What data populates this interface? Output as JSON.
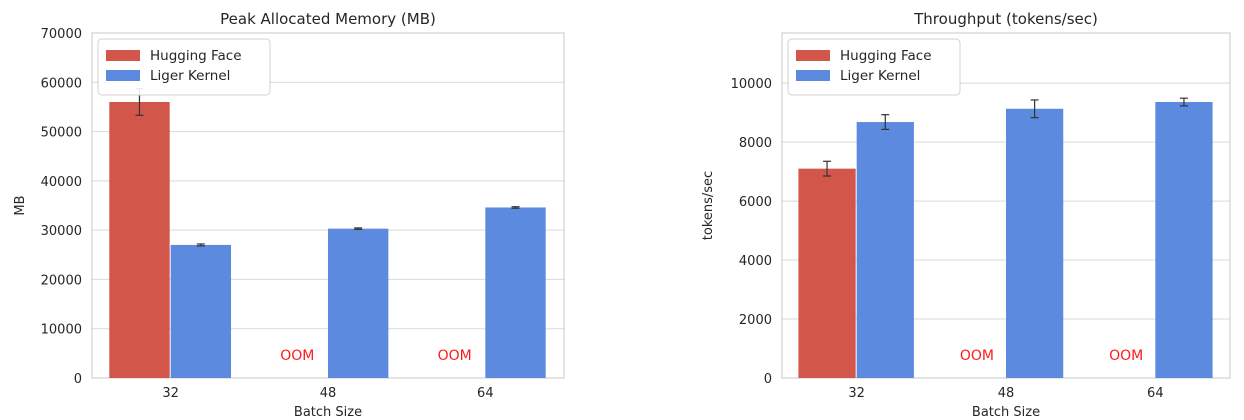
{
  "colors": {
    "hugging_face": "#d2564a",
    "liger_kernel": "#5b8ade",
    "oom_text": "#ff1a1a",
    "grid": "#d9d9d9",
    "frame": "#c8c8c8"
  },
  "chart_data": [
    {
      "type": "bar",
      "title": "Peak Allocated Memory (MB)",
      "xlabel": "Batch Size",
      "ylabel": "MB",
      "categories": [
        "32",
        "48",
        "64"
      ],
      "ylim": [
        0,
        70000
      ],
      "yticks": [
        0,
        10000,
        20000,
        30000,
        40000,
        50000,
        60000,
        70000
      ],
      "grid": true,
      "legend_position": "top-left",
      "series": [
        {
          "name": "Hugging Face",
          "color_key": "hugging_face",
          "values": [
            56000,
            null,
            null
          ],
          "errors": [
            2700,
            null,
            null
          ]
        },
        {
          "name": "Liger Kernel",
          "color_key": "liger_kernel",
          "values": [
            27000,
            30300,
            34600
          ],
          "errors": [
            200,
            150,
            150
          ]
        }
      ],
      "annotations": [
        {
          "text": "OOM",
          "category": "48"
        },
        {
          "text": "OOM",
          "category": "64"
        }
      ]
    },
    {
      "type": "bar",
      "title": "Throughput (tokens/sec)",
      "xlabel": "Batch Size",
      "ylabel": "tokens/sec",
      "categories": [
        "32",
        "48",
        "64"
      ],
      "ylim": [
        0,
        11700
      ],
      "yticks": [
        0,
        2000,
        4000,
        6000,
        8000,
        10000
      ],
      "grid": true,
      "legend_position": "top-left",
      "series": [
        {
          "name": "Hugging Face",
          "color_key": "hugging_face",
          "values": [
            7100,
            null,
            null
          ],
          "errors": [
            250,
            null,
            null
          ]
        },
        {
          "name": "Liger Kernel",
          "color_key": "liger_kernel",
          "values": [
            8680,
            9130,
            9360
          ],
          "errors": [
            250,
            300,
            130
          ]
        }
      ],
      "annotations": [
        {
          "text": "OOM",
          "category": "48"
        },
        {
          "text": "OOM",
          "category": "64"
        }
      ]
    }
  ]
}
